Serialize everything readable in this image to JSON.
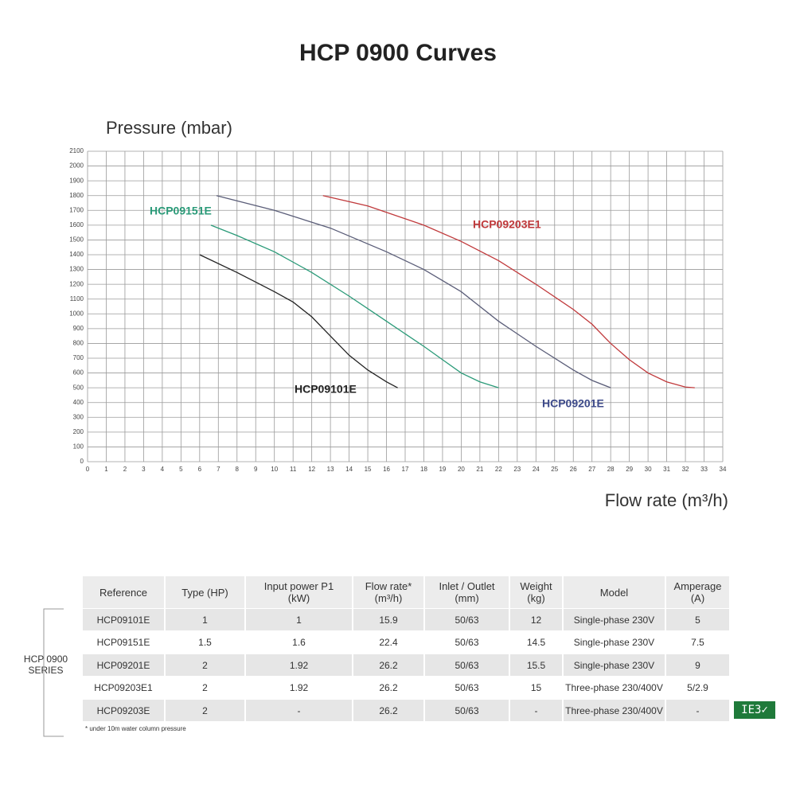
{
  "chart_data": {
    "type": "line",
    "title": "HCP 0900 Curves",
    "y_label": "Pressure (mbar)",
    "x_label": "Flow rate (m³/h)",
    "xlim": [
      0,
      34
    ],
    "xticks": [
      0,
      1,
      2,
      3,
      4,
      5,
      6,
      7,
      8,
      9,
      10,
      11,
      12,
      13,
      14,
      15,
      16,
      17,
      18,
      19,
      20,
      21,
      22,
      23,
      24,
      25,
      26,
      27,
      28,
      29,
      30,
      31,
      32,
      33,
      34
    ],
    "ylim": [
      0,
      2100
    ],
    "yticks": [
      0,
      100,
      200,
      300,
      400,
      500,
      600,
      700,
      800,
      900,
      1000,
      1100,
      1200,
      1300,
      1400,
      1500,
      1600,
      1700,
      1800,
      1900,
      2000,
      2100
    ],
    "grid": true,
    "series": [
      {
        "name": "HCP09101E",
        "color": "#222222",
        "x": [
          6,
          8,
          10,
          11,
          12,
          13,
          14,
          15,
          16,
          16.6
        ],
        "values": [
          1400,
          1280,
          1150,
          1080,
          980,
          850,
          720,
          620,
          540,
          500
        ]
      },
      {
        "name": "HCP09151E",
        "color": "#2a9a78",
        "x": [
          6.6,
          8,
          10,
          12,
          14,
          16,
          18,
          19,
          20,
          21,
          22
        ],
        "values": [
          1600,
          1530,
          1420,
          1280,
          1120,
          950,
          780,
          690,
          600,
          540,
          500
        ]
      },
      {
        "name": "HCP09201E",
        "color": "#5a5d78",
        "x": [
          6.9,
          10,
          13,
          16,
          18,
          20,
          22,
          24,
          26,
          27,
          28
        ],
        "values": [
          1800,
          1700,
          1580,
          1420,
          1300,
          1150,
          950,
          780,
          620,
          550,
          500
        ]
      },
      {
        "name": "HCP09203E1",
        "color": "#c0393b",
        "x": [
          12.6,
          15,
          18,
          20,
          22,
          24,
          26,
          27,
          28,
          29,
          30,
          31,
          32,
          32.5
        ],
        "values": [
          1800,
          1730,
          1600,
          1490,
          1360,
          1200,
          1030,
          930,
          800,
          690,
          600,
          540,
          505,
          500
        ]
      }
    ]
  },
  "table": {
    "headers": [
      "Reference",
      "Type (HP)",
      "Input power P1\n(kW)",
      "Flow rate*\n(m³/h)",
      "Inlet / Outlet\n(mm)",
      "Weight\n(kg)",
      "Model",
      "Amperage\n(A)"
    ],
    "rows": [
      [
        "HCP09101E",
        "1",
        "1",
        "15.9",
        "50/63",
        "12",
        "Single-phase 230V",
        "5"
      ],
      [
        "HCP09151E",
        "1.5",
        "1.6",
        "22.4",
        "50/63",
        "14.5",
        "Single-phase 230V",
        "7.5"
      ],
      [
        "HCP09201E",
        "2",
        "1.92",
        "26.2",
        "50/63",
        "15.5",
        "Single-phase 230V",
        "9"
      ],
      [
        "HCP09203E1",
        "2",
        "1.92",
        "26.2",
        "50/63",
        "15",
        "Three-phase 230/400V",
        "5/2.9"
      ],
      [
        "HCP09203E",
        "2",
        "-",
        "26.2",
        "50/63",
        "-",
        "Three-phase 230/400V",
        "-"
      ]
    ],
    "group_label": "HCP 0900\nSERIES",
    "footnote": "* under 10m water column pressure",
    "badge": "IE3✓"
  }
}
